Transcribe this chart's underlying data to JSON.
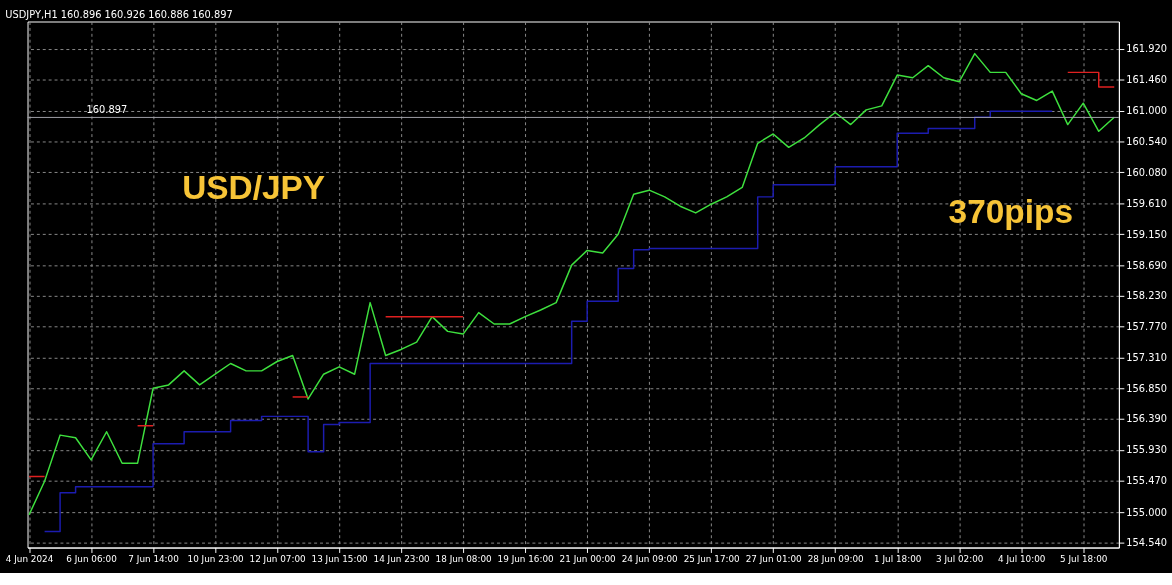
{
  "chart_data": {
    "type": "line",
    "title": "USDJPY,H1  160.896 160.926 160.886 160.897",
    "categories": [
      "4 Jun 2024",
      null,
      null,
      null,
      "6 Jun 06:00",
      null,
      null,
      null,
      "7 Jun 14:00",
      null,
      null,
      null,
      "10 Jun 23:00",
      null,
      null,
      null,
      "12 Jun 07:00",
      null,
      null,
      null,
      "13 Jun 15:00",
      null,
      null,
      null,
      "14 Jun 23:00",
      null,
      null,
      null,
      "18 Jun 08:00",
      null,
      null,
      null,
      "19 Jun 16:00",
      null,
      null,
      null,
      "21 Jun 00:00",
      null,
      null,
      null,
      "24 Jun 09:00",
      null,
      null,
      null,
      "25 Jun 17:00",
      null,
      null,
      null,
      "27 Jun 01:00",
      null,
      null,
      null,
      "28 Jun 09:00",
      null,
      null,
      null,
      "1 Jul 18:00",
      null,
      null,
      null,
      "3 Jul 02:00",
      null,
      null,
      null,
      "4 Jul 10:00",
      null,
      null,
      null,
      "5 Jul 18:00",
      null,
      null
    ],
    "series": [
      {
        "type": "line",
        "color": "#3ee03e",
        "values": [
          154.96,
          155.46,
          156.15,
          156.11,
          155.78,
          156.2,
          155.73,
          155.73,
          156.85,
          156.9,
          157.11,
          156.9,
          157.06,
          157.22,
          157.11,
          157.11,
          157.25,
          157.34,
          156.69,
          157.06,
          157.17,
          157.06,
          158.13,
          157.34,
          157.43,
          157.54,
          157.92,
          157.7,
          157.66,
          157.98,
          157.81,
          157.81,
          157.92,
          158.02,
          158.13,
          158.69,
          158.91,
          158.87,
          159.15,
          159.75,
          159.81,
          159.71,
          159.57,
          159.47,
          159.6,
          159.71,
          159.85,
          160.51,
          160.65,
          160.45,
          160.59,
          160.79,
          160.97,
          160.79,
          161.01,
          161.07,
          161.53,
          161.49,
          161.67,
          161.49,
          161.43,
          161.85,
          161.57,
          161.57,
          161.25,
          161.15,
          161.29,
          160.79,
          161.11,
          160.69,
          160.9
        ]
      },
      {
        "type": "step",
        "color": "#1c1cb0",
        "values": [
          null,
          154.71,
          155.29,
          155.38,
          155.38,
          155.38,
          155.38,
          155.38,
          156.02,
          156.02,
          156.2,
          156.2,
          156.2,
          156.37,
          156.37,
          156.43,
          156.43,
          156.43,
          155.9,
          156.31,
          156.34,
          156.34,
          157.22,
          157.22,
          157.22,
          157.22,
          157.22,
          157.22,
          157.22,
          157.22,
          157.22,
          157.22,
          157.22,
          157.22,
          157.22,
          157.85,
          158.15,
          158.15,
          158.64,
          158.92,
          158.94,
          158.94,
          158.94,
          158.94,
          158.94,
          158.94,
          158.94,
          159.71,
          159.89,
          159.89,
          159.89,
          159.89,
          160.16,
          160.16,
          160.16,
          160.16,
          160.66,
          160.66,
          160.73,
          160.73,
          160.73,
          160.9,
          160.99,
          160.99,
          160.99,
          160.99,
          160.99,
          null,
          null,
          null,
          null
        ]
      },
      {
        "type": "step",
        "color": "#e02020",
        "values": [
          155.53,
          155.53,
          null,
          null,
          null,
          null,
          null,
          156.29,
          156.29,
          null,
          null,
          null,
          null,
          null,
          null,
          null,
          null,
          156.72,
          156.72,
          null,
          null,
          null,
          null,
          157.92,
          157.92,
          157.92,
          157.92,
          157.92,
          157.92,
          null,
          null,
          null,
          null,
          null,
          null,
          null,
          null,
          null,
          null,
          null,
          null,
          null,
          null,
          null,
          null,
          null,
          null,
          null,
          null,
          null,
          null,
          null,
          null,
          null,
          null,
          null,
          null,
          null,
          null,
          null,
          null,
          null,
          null,
          null,
          null,
          null,
          null,
          161.57,
          161.57,
          161.35,
          161.35
        ]
      }
    ],
    "ylim": [
      154.47,
      162.33
    ],
    "yticks": [
      {
        "value": 154.54,
        "label": "154.540"
      },
      {
        "value": 155.0,
        "label": "155.000"
      },
      {
        "value": 155.47,
        "label": "155.470"
      },
      {
        "value": 155.93,
        "label": "155.930"
      },
      {
        "value": 156.39,
        "label": "156.390"
      },
      {
        "value": 156.85,
        "label": "156.850"
      },
      {
        "value": 157.31,
        "label": "157.310"
      },
      {
        "value": 157.77,
        "label": "157.770"
      },
      {
        "value": 158.23,
        "label": "158.230"
      },
      {
        "value": 158.69,
        "label": "158.690"
      },
      {
        "value": 159.15,
        "label": "159.150"
      },
      {
        "value": 159.61,
        "label": "159.610"
      },
      {
        "value": 160.08,
        "label": "160.080"
      },
      {
        "value": 160.54,
        "label": "160.540"
      },
      {
        "value": 161.0,
        "label": "161.000"
      },
      {
        "value": 161.46,
        "label": "161.460"
      },
      {
        "value": 161.92,
        "label": "161.920"
      }
    ],
    "ref_lines": [
      {
        "axis": "y",
        "value": 160.897,
        "label": "160.897",
        "color": "#a0a0a8"
      }
    ],
    "annotations": [
      "USD/JPY",
      "370pips"
    ],
    "grid": true
  }
}
